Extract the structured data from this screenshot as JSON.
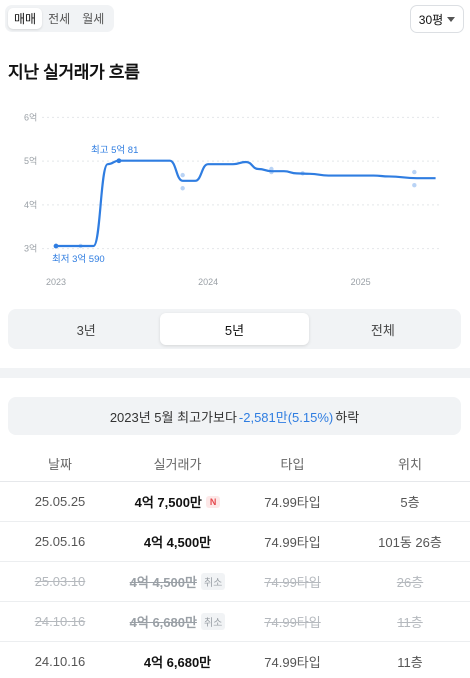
{
  "deal_tabs": [
    "매매",
    "전세",
    "월세"
  ],
  "area_select": {
    "value": "30평"
  },
  "section_title": "지난 실거래가 흐름",
  "chart_data": {
    "type": "line",
    "title": "",
    "ylabel": "",
    "xlabel": "",
    "y_unit": "억",
    "y_ticks": [
      "6억",
      "5억",
      "4억",
      "3억"
    ],
    "ylim": [
      2.9,
      6.1
    ],
    "x_ticks": [
      "2023",
      "2024",
      "2025"
    ],
    "x_tick_dates": [
      "2023-01-01",
      "2024-01-01",
      "2025-01-01"
    ],
    "xlim": [
      "2023-01-01",
      "2025-07-01"
    ],
    "grid": "horizontal-dashed",
    "annotations": [
      {
        "text": "최고 5억 81",
        "date": "2023-06-01",
        "value": 5.0081
      },
      {
        "text": "최저 3억 590",
        "date": "2023-01-01",
        "value": 3.059
      }
    ],
    "series": [
      {
        "points": [
          [
            "2023-01-01",
            3.06
          ],
          [
            "2023-02-15",
            3.06
          ],
          [
            "2023-04-01",
            3.06
          ],
          [
            "2023-05-05",
            4.93
          ],
          [
            "2023-06-01",
            5.01
          ],
          [
            "2023-09-01",
            5.01
          ],
          [
            "2023-10-01",
            5.01
          ],
          [
            "2023-11-01",
            4.55
          ],
          [
            "2023-12-01",
            4.55
          ],
          [
            "2024-01-01",
            4.93
          ],
          [
            "2024-03-01",
            4.93
          ],
          [
            "2024-04-01",
            4.98
          ],
          [
            "2024-05-01",
            4.82
          ],
          [
            "2024-06-01",
            4.77
          ],
          [
            "2024-07-01",
            4.77
          ],
          [
            "2024-08-01",
            4.72
          ],
          [
            "2024-09-01",
            4.71
          ],
          [
            "2024-10-16",
            4.67
          ],
          [
            "2025-02-01",
            4.67
          ],
          [
            "2025-03-10",
            4.65
          ],
          [
            "2025-05-16",
            4.61
          ],
          [
            "2025-06-30",
            4.61
          ]
        ]
      }
    ],
    "scatter": [
      [
        "2023-03-01",
        3.06
      ],
      [
        "2023-06-01",
        5.01
      ],
      [
        "2023-11-01",
        4.68
      ],
      [
        "2023-11-01",
        4.38
      ],
      [
        "2024-06-01",
        4.82
      ],
      [
        "2024-06-01",
        4.75
      ],
      [
        "2024-08-15",
        4.72
      ],
      [
        "2025-05-10",
        4.75
      ],
      [
        "2025-05-10",
        4.45
      ]
    ]
  },
  "period_tabs": [
    "3년",
    "5년",
    "전체"
  ],
  "notice": {
    "prefix": "2023년 5월 최고가보다",
    "change": "-2,581만(5.15%)",
    "suffix": "하락"
  },
  "table": {
    "headers": [
      "날짜",
      "실거래가",
      "타입",
      "위치"
    ],
    "rows": [
      {
        "date": "25.05.25",
        "price": "4억 7,500만",
        "badge": "N",
        "type": "74.99타입",
        "location": "5층"
      },
      {
        "date": "25.05.16",
        "price": "4억 4,500만",
        "type": "74.99타입",
        "location": "101동 26층"
      },
      {
        "date": "25.03.10",
        "price": "4억 4,500만",
        "badge": "취소",
        "type": "74.99타입",
        "location": "26층"
      },
      {
        "date": "24.10.16",
        "price": "4억 6,680만",
        "badge": "취소",
        "type": "74.99타입",
        "location": "11층"
      },
      {
        "date": "24.10.16",
        "price": "4억 6,680만",
        "type": "74.99타입",
        "location": "11층"
      }
    ]
  },
  "colors": {
    "line": "#2f7de1",
    "scatter": "#b9d3f5",
    "negative": "#2f7de1",
    "new_badge": "#e5484d"
  }
}
